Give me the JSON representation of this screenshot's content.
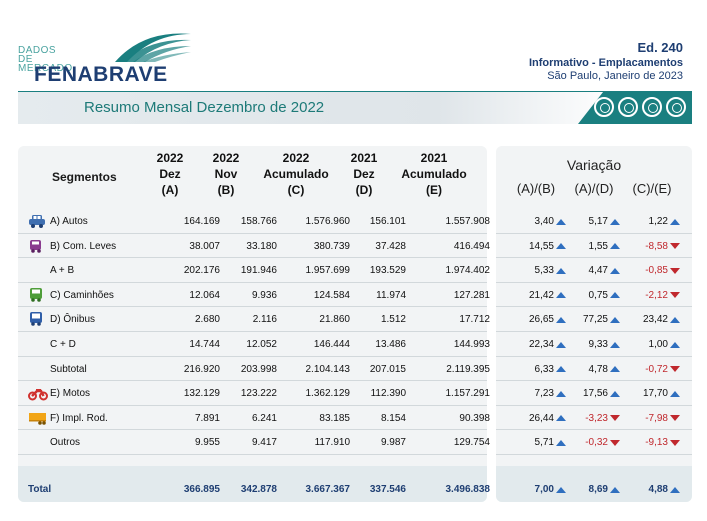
{
  "header": {
    "logo_small_1": "DADOS DE",
    "logo_small_2": "MERCADO",
    "logo_big": "FENABRAVE",
    "edition": "Ed. 240",
    "subtitle": "Informativo - Emplacamentos",
    "location_date": "São Paulo, Janeiro de 2023"
  },
  "banner": {
    "title": "Resumo Mensal Dezembro de 2022"
  },
  "colors": {
    "teal": "#1a7f80",
    "navy": "#1e3e72",
    "up": "#2f6fbf",
    "down": "#c0282d"
  },
  "columns": {
    "segmentos": "Segmentos",
    "a": [
      "2022",
      "Dez",
      "(A)"
    ],
    "b": [
      "2022",
      "Nov",
      "(B)"
    ],
    "c": [
      "2022",
      "Acumulado",
      "(C)"
    ],
    "d": [
      "2021",
      "Dez",
      "(D)"
    ],
    "e": [
      "2021",
      "Acumulado",
      "(E)"
    ],
    "variacao": "Variação",
    "var_ab": "(A)/(B)",
    "var_ad": "(A)/(D)",
    "var_ce": "(C)/(E)"
  },
  "rows": [
    {
      "label": "A) Autos",
      "icon": "car-icon",
      "a": "164.169",
      "b": "158.766",
      "c": "1.576.960",
      "d": "156.101",
      "e": "1.557.908",
      "ab": "3,40",
      "ad": "5,17",
      "ce": "1,22",
      "ab_dir": "up",
      "ad_dir": "up",
      "ce_dir": "up"
    },
    {
      "label": "B) Com. Leves",
      "icon": "van-icon",
      "a": "38.007",
      "b": "33.180",
      "c": "380.739",
      "d": "37.428",
      "e": "416.494",
      "ab": "14,55",
      "ad": "1,55",
      "ce": "-8,58",
      "ab_dir": "up",
      "ad_dir": "up",
      "ce_dir": "down"
    },
    {
      "label": "A + B",
      "icon": "",
      "a": "202.176",
      "b": "191.946",
      "c": "1.957.699",
      "d": "193.529",
      "e": "1.974.402",
      "ab": "5,33",
      "ad": "4,47",
      "ce": "-0,85",
      "ab_dir": "up",
      "ad_dir": "up",
      "ce_dir": "down"
    },
    {
      "label": "C) Caminhões",
      "icon": "truck-icon",
      "a": "12.064",
      "b": "9.936",
      "c": "124.584",
      "d": "11.974",
      "e": "127.281",
      "ab": "21,42",
      "ad": "0,75",
      "ce": "-2,12",
      "ab_dir": "up",
      "ad_dir": "up",
      "ce_dir": "down"
    },
    {
      "label": "D) Ônibus",
      "icon": "bus-icon",
      "a": "2.680",
      "b": "2.116",
      "c": "21.860",
      "d": "1.512",
      "e": "17.712",
      "ab": "26,65",
      "ad": "77,25",
      "ce": "23,42",
      "ab_dir": "up",
      "ad_dir": "up",
      "ce_dir": "up"
    },
    {
      "label": "C + D",
      "icon": "",
      "a": "14.744",
      "b": "12.052",
      "c": "146.444",
      "d": "13.486",
      "e": "144.993",
      "ab": "22,34",
      "ad": "9,33",
      "ce": "1,00",
      "ab_dir": "up",
      "ad_dir": "up",
      "ce_dir": "up"
    },
    {
      "label": "Subtotal",
      "icon": "",
      "a": "216.920",
      "b": "203.998",
      "c": "2.104.143",
      "d": "207.015",
      "e": "2.119.395",
      "ab": "6,33",
      "ad": "4,78",
      "ce": "-0,72",
      "ab_dir": "up",
      "ad_dir": "up",
      "ce_dir": "down"
    },
    {
      "label": "E) Motos",
      "icon": "motorcycle-icon",
      "a": "132.129",
      "b": "123.222",
      "c": "1.362.129",
      "d": "112.390",
      "e": "1.157.291",
      "ab": "7,23",
      "ad": "17,56",
      "ce": "17,70",
      "ab_dir": "up",
      "ad_dir": "up",
      "ce_dir": "up"
    },
    {
      "label": "F) Impl. Rod.",
      "icon": "trailer-icon",
      "a": "7.891",
      "b": "6.241",
      "c": "83.185",
      "d": "8.154",
      "e": "90.398",
      "ab": "26,44",
      "ad": "-3,23",
      "ce": "-7,98",
      "ab_dir": "up",
      "ad_dir": "down",
      "ce_dir": "down"
    },
    {
      "label": "Outros",
      "icon": "",
      "a": "9.955",
      "b": "9.417",
      "c": "117.910",
      "d": "9.987",
      "e": "129.754",
      "ab": "5,71",
      "ad": "-0,32",
      "ce": "-9,13",
      "ab_dir": "up",
      "ad_dir": "down",
      "ce_dir": "down"
    }
  ],
  "total": {
    "label": "Total",
    "a": "366.895",
    "b": "342.878",
    "c": "3.667.367",
    "d": "337.546",
    "e": "3.496.838",
    "ab": "7,00",
    "ad": "8,69",
    "ce": "4,88",
    "ab_dir": "up",
    "ad_dir": "up",
    "ce_dir": "up"
  }
}
